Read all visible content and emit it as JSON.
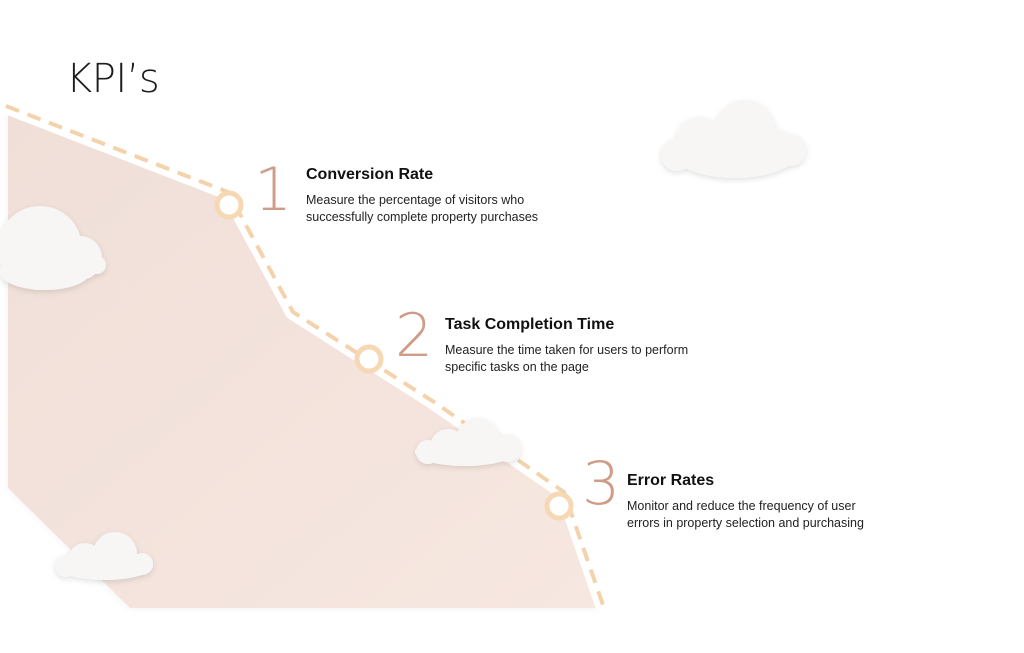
{
  "title": "KPI’s",
  "kpis": [
    {
      "number": "1",
      "heading": "Conversion Rate",
      "description": "Measure the percentage of visitors who successfully complete property purchases"
    },
    {
      "number": "2",
      "heading": "Task Completion Time",
      "description": "Measure the time taken for users to perform specific tasks on the page"
    },
    {
      "number": "3",
      "heading": "Error Rates",
      "description": "Monitor and reduce the frequency of user errors in property selection and purchasing"
    }
  ],
  "colors": {
    "path_dash": "#f4d2ac",
    "marker_ring": "#f6d8b4",
    "number": "#cf9d87",
    "slope_fill": "#f2dfd7",
    "cloud": "#f5f3f2"
  }
}
